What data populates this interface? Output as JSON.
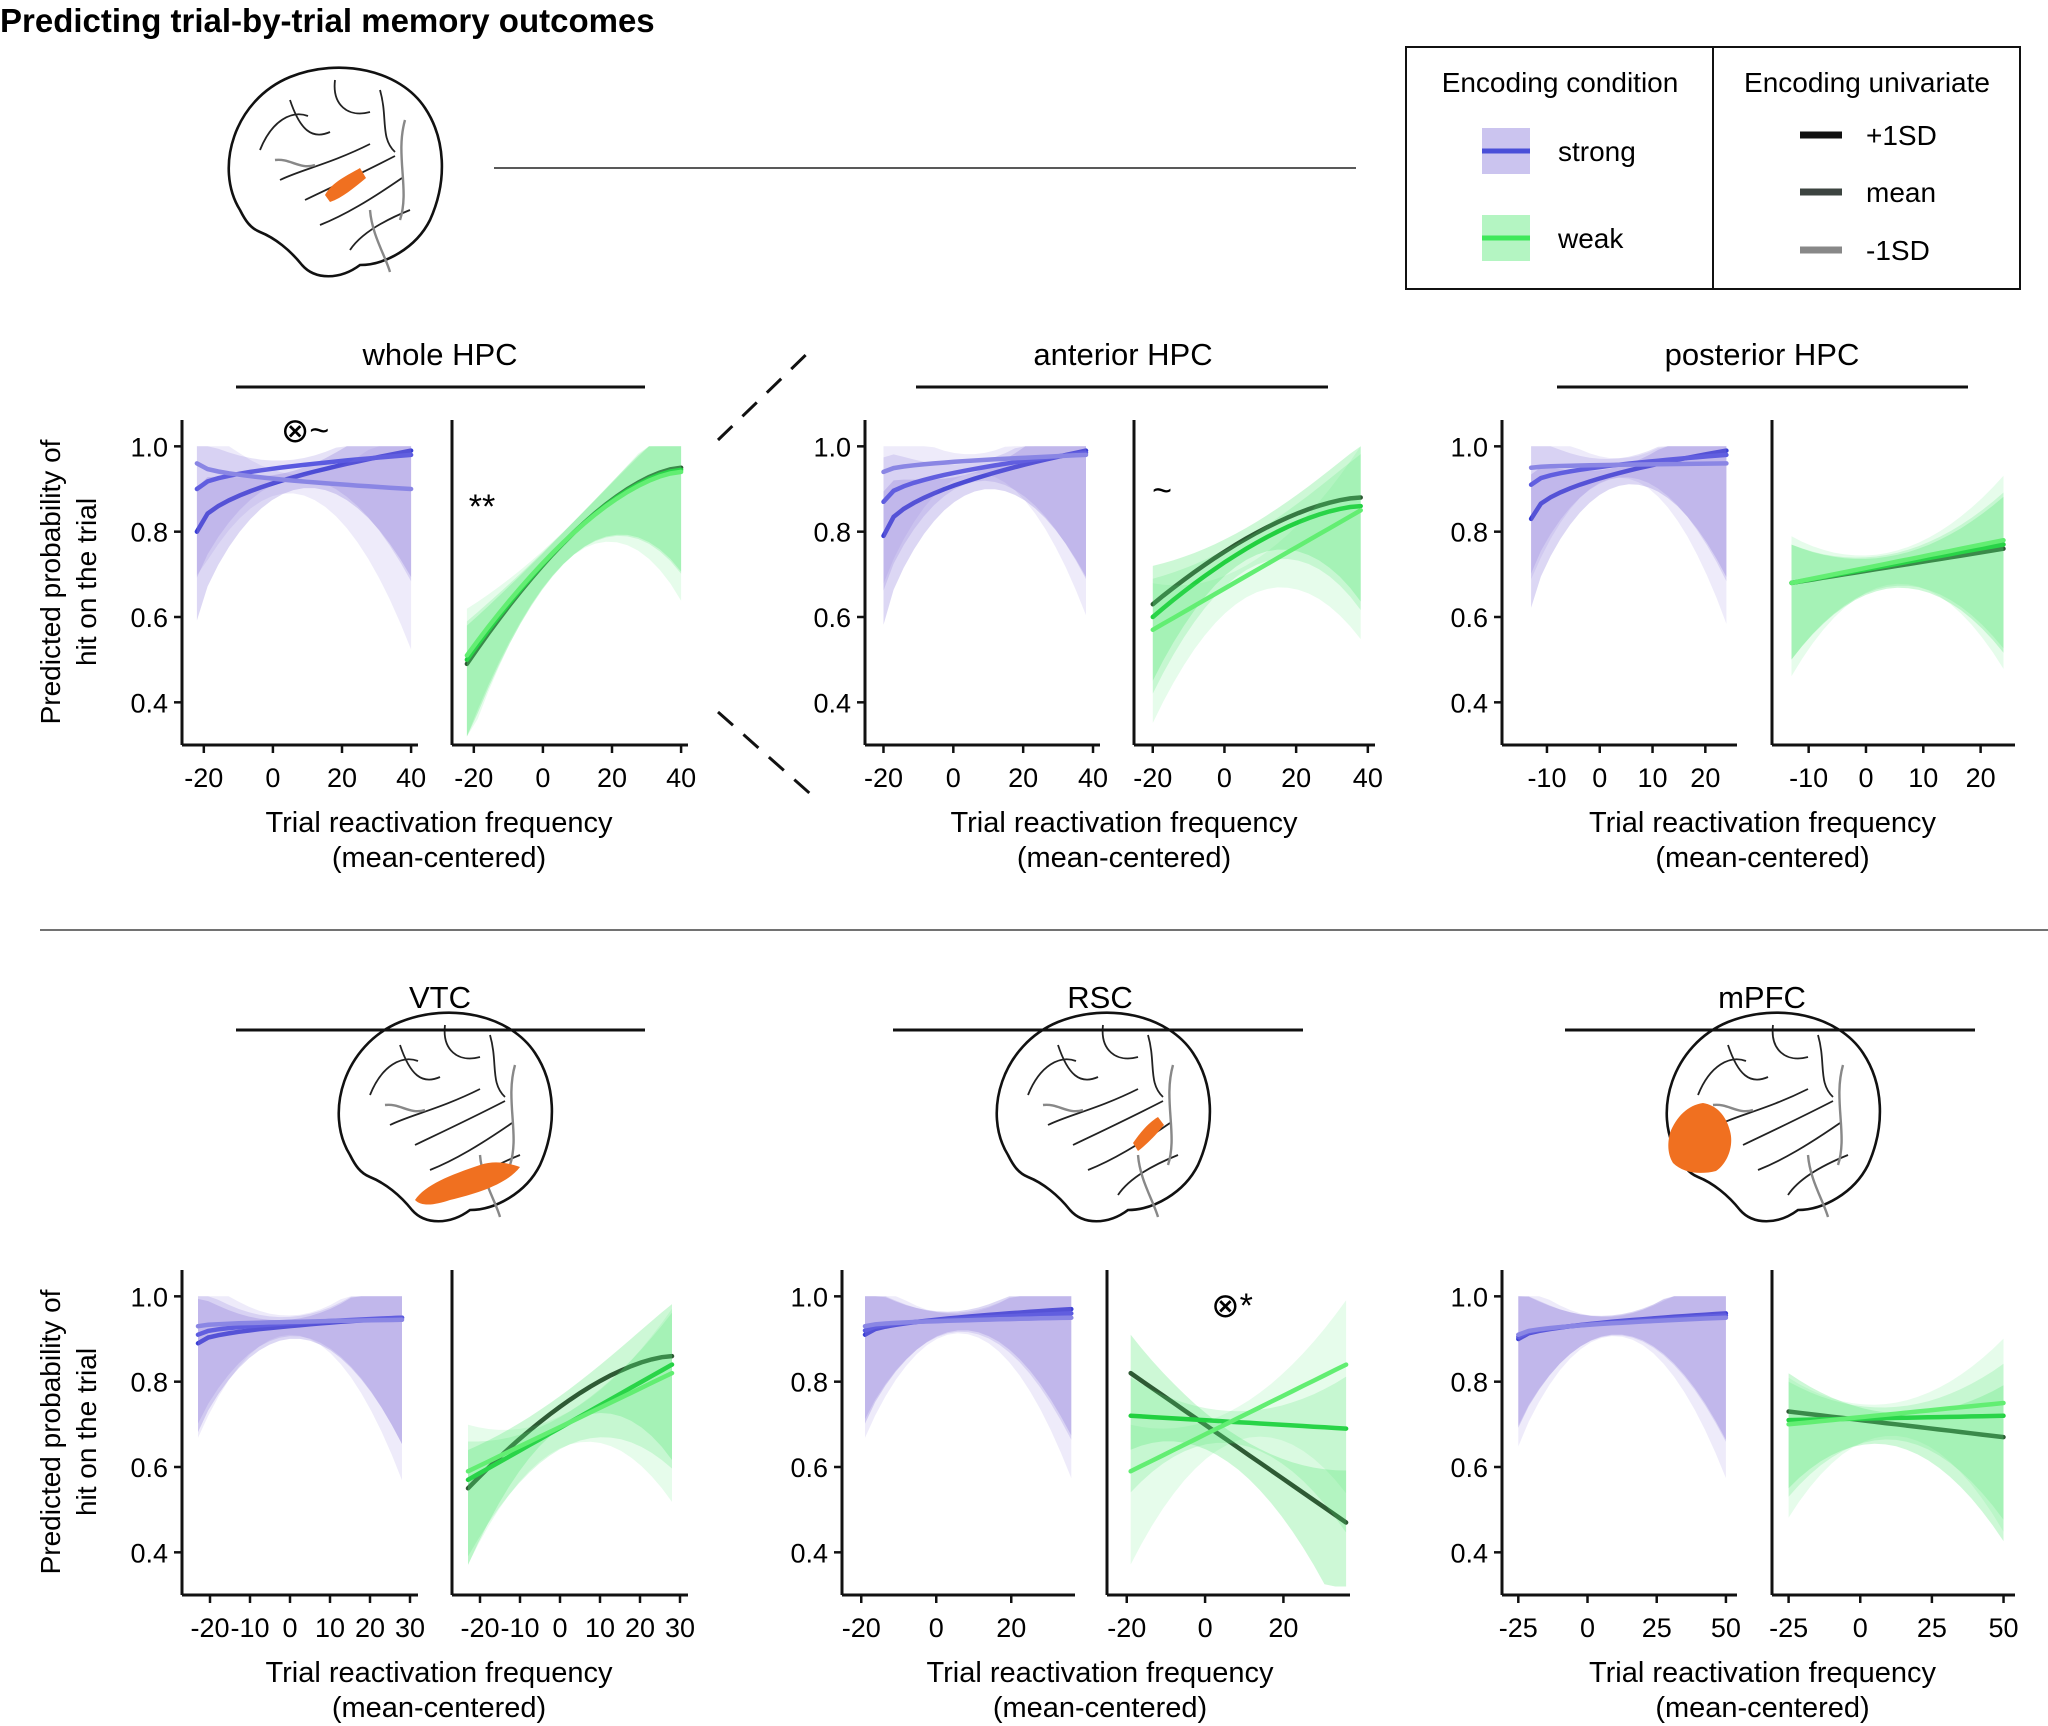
{
  "figure_title": "Predicting trial-by-trial memory outcomes",
  "colors": {
    "strong": "#4a4fd8",
    "strong_band": "#8c7cdc",
    "weak": "#3ee85a",
    "weak_band": "#58e878",
    "plus1sd": "#1e3a26",
    "mean": "#3a4a40",
    "minus1sd": "#888888",
    "brain_highlight": "#f07020"
  },
  "legend": {
    "condition_title": "Encoding condition",
    "univariate_title": "Encoding univariate",
    "strong_label": "strong",
    "weak_label": "weak",
    "plus1sd_label": "+1SD",
    "mean_label": "mean",
    "minus1sd_label": "-1SD"
  },
  "shared": {
    "ylabel_line1": "Predicted probability of",
    "ylabel_line2": "hit on the trial",
    "xlabel_line1": "Trial  reactivation frequency",
    "xlabel_line2": "(mean-centered)"
  },
  "chart_data": [
    {
      "type": "line",
      "region": "whole HPC",
      "title": "whole HPC",
      "xlabel": "Trial  reactivation frequency (mean-centered)",
      "ylabel": "Predicted probability of hit on the trial",
      "ylim": [
        0.3,
        1.05
      ],
      "yticks": [
        0.4,
        0.6,
        0.8,
        1.0
      ],
      "annotations": [
        {
          "text": "⊗~",
          "panel": "strong"
        },
        {
          "text": "**",
          "panel": "weak"
        }
      ],
      "panels": [
        {
          "condition": "strong",
          "xlim": [
            -24,
            42
          ],
          "xticks": [
            -20,
            0,
            20,
            40
          ],
          "series": [
            {
              "name": "+1SD",
              "x": [
                -22,
                40
              ],
              "y": [
                0.8,
                0.99
              ]
            },
            {
              "name": "mean",
              "x": [
                -22,
                40
              ],
              "y": [
                0.9,
                0.98
              ]
            },
            {
              "name": "-1SD",
              "x": [
                -22,
                40
              ],
              "y": [
                0.96,
                0.9
              ]
            }
          ]
        },
        {
          "condition": "weak",
          "xlim": [
            -24,
            42
          ],
          "xticks": [
            -20,
            0,
            20,
            40
          ],
          "series": [
            {
              "name": "+1SD",
              "x": [
                -22,
                40
              ],
              "y": [
                0.49,
                0.95
              ]
            },
            {
              "name": "mean",
              "x": [
                -22,
                40
              ],
              "y": [
                0.5,
                0.945
              ]
            },
            {
              "name": "-1SD",
              "x": [
                -22,
                40
              ],
              "y": [
                0.51,
                0.94
              ]
            }
          ]
        }
      ]
    },
    {
      "type": "line",
      "region": "anterior HPC",
      "title": "anterior HPC",
      "xlabel": "Trial  reactivation frequency (mean-centered)",
      "ylim": [
        0.3,
        1.05
      ],
      "yticks": [
        0.4,
        0.6,
        0.8,
        1.0
      ],
      "annotations": [
        {
          "text": "~",
          "panel": "weak"
        }
      ],
      "panels": [
        {
          "condition": "strong",
          "xlim": [
            -23,
            42
          ],
          "xticks": [
            -20,
            0,
            20,
            40
          ],
          "series": [
            {
              "name": "+1SD",
              "x": [
                -20,
                38
              ],
              "y": [
                0.79,
                0.99
              ]
            },
            {
              "name": "mean",
              "x": [
                -20,
                38
              ],
              "y": [
                0.87,
                0.985
              ]
            },
            {
              "name": "-1SD",
              "x": [
                -20,
                38
              ],
              "y": [
                0.94,
                0.98
              ]
            }
          ]
        },
        {
          "condition": "weak",
          "xlim": [
            -23,
            42
          ],
          "xticks": [
            -20,
            0,
            20,
            40
          ],
          "series": [
            {
              "name": "+1SD",
              "x": [
                -20,
                38
              ],
              "y": [
                0.63,
                0.88
              ]
            },
            {
              "name": "mean",
              "x": [
                -20,
                38
              ],
              "y": [
                0.6,
                0.86
              ]
            },
            {
              "name": "-1SD",
              "x": [
                -20,
                38
              ],
              "y": [
                0.57,
                0.85
              ]
            }
          ]
        }
      ]
    },
    {
      "type": "line",
      "region": "posterior HPC",
      "title": "posterior HPC",
      "xlabel": "Trial  reactivation frequency (mean-centered)",
      "ylim": [
        0.3,
        1.05
      ],
      "yticks": [
        0.4,
        0.6,
        0.8,
        1.0
      ],
      "annotations": [],
      "panels": [
        {
          "condition": "strong",
          "xlim": [
            -17,
            26
          ],
          "xticks": [
            -10,
            0,
            10,
            20
          ],
          "series": [
            {
              "name": "+1SD",
              "x": [
                -13,
                24
              ],
              "y": [
                0.83,
                0.99
              ]
            },
            {
              "name": "mean",
              "x": [
                -13,
                24
              ],
              "y": [
                0.91,
                0.98
              ]
            },
            {
              "name": "-1SD",
              "x": [
                -13,
                24
              ],
              "y": [
                0.95,
                0.96
              ]
            }
          ]
        },
        {
          "condition": "weak",
          "xlim": [
            -15,
            26
          ],
          "xticks": [
            -10,
            0,
            10,
            20
          ],
          "series": [
            {
              "name": "+1SD",
              "x": [
                -13,
                24
              ],
              "y": [
                0.68,
                0.76
              ]
            },
            {
              "name": "mean",
              "x": [
                -13,
                24
              ],
              "y": [
                0.68,
                0.77
              ]
            },
            {
              "name": "-1SD",
              "x": [
                -13,
                24
              ],
              "y": [
                0.68,
                0.78
              ]
            }
          ]
        }
      ]
    },
    {
      "type": "line",
      "region": "VTC",
      "title": "VTC",
      "xlabel": "Trial  reactivation frequency (mean-centered)",
      "ylabel": "Predicted probability of hit on the trial",
      "ylim": [
        0.3,
        1.05
      ],
      "yticks": [
        0.4,
        0.6,
        0.8,
        1.0
      ],
      "annotations": [],
      "panels": [
        {
          "condition": "strong",
          "xlim": [
            -25,
            32
          ],
          "xticks": [
            -20,
            -10,
            0,
            10,
            20,
            30
          ],
          "series": [
            {
              "name": "+1SD",
              "x": [
                -23,
                28
              ],
              "y": [
                0.89,
                0.95
              ]
            },
            {
              "name": "mean",
              "x": [
                -23,
                28
              ],
              "y": [
                0.91,
                0.95
              ]
            },
            {
              "name": "-1SD",
              "x": [
                -23,
                28
              ],
              "y": [
                0.93,
                0.945
              ]
            }
          ]
        },
        {
          "condition": "weak",
          "xlim": [
            -25,
            32
          ],
          "xticks": [
            -20,
            -10,
            0,
            10,
            20,
            30
          ],
          "series": [
            {
              "name": "+1SD",
              "x": [
                -23,
                28
              ],
              "y": [
                0.55,
                0.86
              ]
            },
            {
              "name": "mean",
              "x": [
                -23,
                28
              ],
              "y": [
                0.57,
                0.84
              ]
            },
            {
              "name": "-1SD",
              "x": [
                -23,
                28
              ],
              "y": [
                0.59,
                0.82
              ]
            }
          ]
        }
      ]
    },
    {
      "type": "line",
      "region": "RSC",
      "title": "RSC",
      "xlabel": "Trial  reactivation frequency (mean-centered)",
      "ylim": [
        0.3,
        1.05
      ],
      "yticks": [
        0.4,
        0.6,
        0.8,
        1.0
      ],
      "annotations": [
        {
          "text": "⊗*",
          "panel": "weak"
        }
      ],
      "panels": [
        {
          "condition": "strong",
          "xlim": [
            -23,
            37
          ],
          "xticks": [
            -20,
            0,
            20
          ],
          "series": [
            {
              "name": "+1SD",
              "x": [
                -19,
                36
              ],
              "y": [
                0.91,
                0.97
              ]
            },
            {
              "name": "mean",
              "x": [
                -19,
                36
              ],
              "y": [
                0.92,
                0.96
              ]
            },
            {
              "name": "-1SD",
              "x": [
                -19,
                36
              ],
              "y": [
                0.93,
                0.95
              ]
            }
          ]
        },
        {
          "condition": "weak",
          "xlim": [
            -23,
            37
          ],
          "xticks": [
            -20,
            0,
            20
          ],
          "series": [
            {
              "name": "+1SD",
              "x": [
                -19,
                36
              ],
              "y": [
                0.82,
                0.47
              ]
            },
            {
              "name": "mean",
              "x": [
                -19,
                36
              ],
              "y": [
                0.72,
                0.69
              ]
            },
            {
              "name": "-1SD",
              "x": [
                -19,
                36
              ],
              "y": [
                0.59,
                0.84
              ]
            }
          ]
        }
      ]
    },
    {
      "type": "line",
      "region": "mPFC",
      "title": "mPFC",
      "xlabel": "Trial  reactivation frequency (mean-centered)",
      "ylim": [
        0.3,
        1.05
      ],
      "yticks": [
        0.4,
        0.6,
        0.8,
        1.0
      ],
      "annotations": [],
      "panels": [
        {
          "condition": "strong",
          "xlim": [
            -28,
            54
          ],
          "xticks": [
            -25,
            0,
            25,
            50
          ],
          "series": [
            {
              "name": "+1SD",
              "x": [
                -25,
                50
              ],
              "y": [
                0.9,
                0.96
              ]
            },
            {
              "name": "mean",
              "x": [
                -25,
                50
              ],
              "y": [
                0.905,
                0.955
              ]
            },
            {
              "name": "-1SD",
              "x": [
                -25,
                50
              ],
              "y": [
                0.91,
                0.95
              ]
            }
          ]
        },
        {
          "condition": "weak",
          "xlim": [
            -28,
            54
          ],
          "xticks": [
            -25,
            0,
            25,
            50
          ],
          "series": [
            {
              "name": "+1SD",
              "x": [
                -25,
                50
              ],
              "y": [
                0.73,
                0.67
              ]
            },
            {
              "name": "mean",
              "x": [
                -25,
                50
              ],
              "y": [
                0.71,
                0.72
              ]
            },
            {
              "name": "-1SD",
              "x": [
                -25,
                50
              ],
              "y": [
                0.7,
                0.75
              ]
            }
          ]
        }
      ]
    }
  ]
}
